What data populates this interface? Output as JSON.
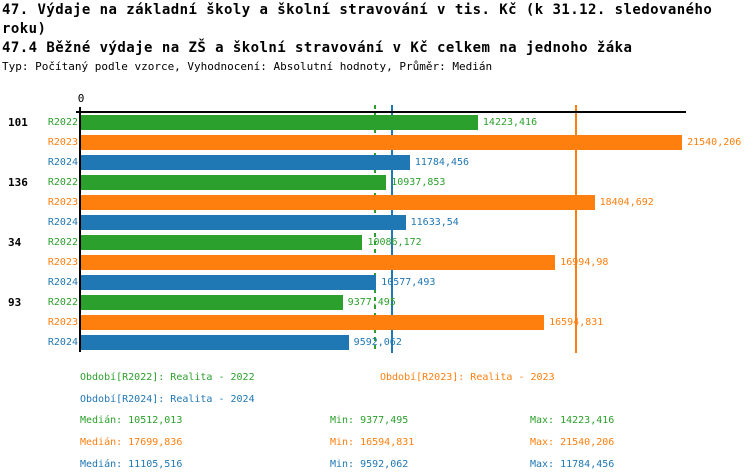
{
  "header": {
    "title_line1": "47. Výdaje na základní školy a školní stravování v tis. Kč (k 31.12. sledovaného",
    "title_line2": "roku)",
    "subtitle": "47.4 Běžné výdaje na ZŠ a školní stravování v Kč celkem na jednoho žáka",
    "meta": "Typ: Počítaný podle vzorce, Vyhodnocení: Absolutní hodnoty, Průměr: Medián"
  },
  "colors": {
    "r2022": "#2ca02c",
    "r2023": "#ff7f0e",
    "r2024": "#1f77b4",
    "axis": "#000000"
  },
  "chart_data": {
    "type": "bar",
    "orientation": "horizontal",
    "axis_max": 21680,
    "zero_tick_label": "0",
    "grid": false,
    "groups": [
      {
        "label": "101",
        "bars": [
          {
            "series": "R2022",
            "value": 14223.416,
            "value_label": "14223,416",
            "color_key": "r2022"
          },
          {
            "series": "R2023",
            "value": 21540.206,
            "value_label": "21540,206",
            "color_key": "r2023"
          },
          {
            "series": "R2024",
            "value": 11784.456,
            "value_label": "11784,456",
            "color_key": "r2024"
          }
        ]
      },
      {
        "label": "136",
        "bars": [
          {
            "series": "R2022",
            "value": 10937.853,
            "value_label": "10937,853",
            "color_key": "r2022"
          },
          {
            "series": "R2023",
            "value": 18404.692,
            "value_label": "18404,692",
            "color_key": "r2023"
          },
          {
            "series": "R2024",
            "value": 11633.54,
            "value_label": "11633,54",
            "color_key": "r2024"
          }
        ]
      },
      {
        "label": "34",
        "bars": [
          {
            "series": "R2022",
            "value": 10086.172,
            "value_label": "10086,172",
            "color_key": "r2022"
          },
          {
            "series": "R2023",
            "value": 16994.98,
            "value_label": "16994,98",
            "color_key": "r2023"
          },
          {
            "series": "R2024",
            "value": 10577.493,
            "value_label": "10577,493",
            "color_key": "r2024"
          }
        ]
      },
      {
        "label": "93",
        "bars": [
          {
            "series": "R2022",
            "value": 9377.495,
            "value_label": "9377,495",
            "color_key": "r2022"
          },
          {
            "series": "R2023",
            "value": 16594.831,
            "value_label": "16594,831",
            "color_key": "r2023"
          },
          {
            "series": "R2024",
            "value": 9592.062,
            "value_label": "9592,062",
            "color_key": "r2024"
          }
        ]
      }
    ],
    "median_lines": [
      {
        "series": "R2022",
        "value": 10512.013,
        "style": "dashed",
        "color_key": "r2022"
      },
      {
        "series": "R2023",
        "value": 17699.836,
        "style": "solid",
        "color_key": "r2023"
      },
      {
        "series": "R2024",
        "value": 11105.516,
        "style": "solid",
        "color_key": "r2024"
      }
    ]
  },
  "legend": {
    "entries": [
      {
        "label": "Období[R2022]: Realita - 2022",
        "color_key": "r2022"
      },
      {
        "label": "Období[R2023]: Realita - 2023",
        "color_key": "r2023"
      },
      {
        "label": "Období[R2024]: Realita - 2024",
        "color_key": "r2024"
      }
    ]
  },
  "stats": {
    "rows": [
      {
        "median": "Medián: 10512,013",
        "min": "Min: 9377,495",
        "max": "Max: 14223,416",
        "color_key": "r2022"
      },
      {
        "median": "Medián: 17699,836",
        "min": "Min: 16594,831",
        "max": "Max: 21540,206",
        "color_key": "r2023"
      },
      {
        "median": "Medián: 11105,516",
        "min": "Min: 9592,062",
        "max": "Max: 11784,456",
        "color_key": "r2024"
      }
    ]
  }
}
